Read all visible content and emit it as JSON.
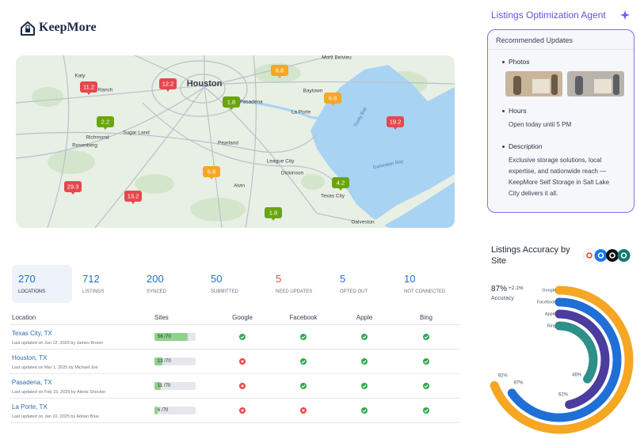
{
  "header": {
    "logo": "KeepMore"
  },
  "map": {
    "places": [
      "Houston",
      "Katy",
      "Ranch",
      "Sugar Land",
      "Richmond",
      "Rosenberg",
      "Pasadena",
      "Baytown",
      "La Porte",
      "Pearland",
      "League City",
      "Dickinson",
      "Alvin",
      "Texas City",
      "Galveston",
      "Mont Belvieu",
      "Trinity Bay",
      "Galveston Bay"
    ],
    "markers": [
      {
        "value": 11.2,
        "color": "#e5484d"
      },
      {
        "value": 12.2,
        "color": "#e5484d"
      },
      {
        "value": 6.8,
        "color": "#f5a623"
      },
      {
        "value": 6.8,
        "color": "#f5a623"
      },
      {
        "value": 1.8,
        "color": "#6aa50f"
      },
      {
        "value": 2.2,
        "color": "#6aa50f"
      },
      {
        "value": 19.2,
        "color": "#e5484d"
      },
      {
        "value": 6.8,
        "color": "#f5a623"
      },
      {
        "value": 29.3,
        "color": "#e5484d"
      },
      {
        "value": 13.2,
        "color": "#e5484d"
      },
      {
        "value": 4.2,
        "color": "#6aa50f"
      },
      {
        "value": 1.8,
        "color": "#6aa50f"
      }
    ]
  },
  "stats": [
    {
      "value": 270,
      "label": "LOCATIONS",
      "color": "#1f6fd6"
    },
    {
      "value": 712,
      "label": "LISTINGS",
      "color": "#1f6fd6"
    },
    {
      "value": 200,
      "label": "SYNCED",
      "color": "#1f6fd6"
    },
    {
      "value": 50,
      "label": "SUBMITTED",
      "color": "#1f6fd6"
    },
    {
      "value": 5,
      "label": "NEED UPDATES",
      "color": "#e5484d"
    },
    {
      "value": 5,
      "label": "OPTED OUT",
      "color": "#1f6fd6"
    },
    {
      "value": 10,
      "label": "NOT CONNECTED",
      "color": "#1f6fd6"
    }
  ],
  "table": {
    "headers": [
      "Location",
      "Sites",
      "Google",
      "Facebook",
      "Apple",
      "Bing"
    ],
    "rows": [
      {
        "name": "Texas City, TX",
        "updated": "Last updated on Jun 12, 2025 by James Brown",
        "sites": 56,
        "sites_total": 70,
        "sites_label": "56 /70",
        "statuses": [
          true,
          true,
          true,
          true
        ]
      },
      {
        "name": "Houston, TX",
        "updated": "Last updated on Mar 1, 2025 by Michael Joe",
        "sites": 13,
        "sites_total": 70,
        "sites_label": "13 /70",
        "statuses": [
          false,
          true,
          true,
          true
        ]
      },
      {
        "name": "Pasadena, TX",
        "updated": "Last updated on Feb 15, 2025 by Alexis Shocker",
        "sites": 11,
        "sites_total": 70,
        "sites_label": "11 /70",
        "statuses": [
          false,
          true,
          true,
          true
        ]
      },
      {
        "name": "La Porte, TX",
        "updated": "Last updated on Jan 10, 2025 by Adrian Blue",
        "sites": 6,
        "sites_total": 70,
        "sites_label": "6 /70",
        "statuses": [
          false,
          false,
          true,
          true
        ]
      }
    ]
  },
  "agent": {
    "title": "Listings Optimization Agent",
    "card_title": "Recommended Updates",
    "items": [
      {
        "label": "Photos"
      },
      {
        "label": "Hours",
        "text": "Open today until 5 PM"
      },
      {
        "label": "Description",
        "text": "Exclusive storage solutions, local expertise, and nationwide reach — KeepMore Self Storage in Salt Lake City delivers it all."
      }
    ]
  },
  "accuracy": {
    "title": "Listings Accuracy by Site",
    "value": 87,
    "value_label": "87%",
    "change": "+2.1%",
    "label": "Accuracy",
    "max": 100,
    "series": [
      {
        "name": "Google",
        "value": 92,
        "value_label": "92%",
        "color": "#f5a623"
      },
      {
        "name": "Facebook",
        "value": 87,
        "value_label": "87%",
        "color": "#1f6fd6"
      },
      {
        "name": "Apple",
        "value": 62,
        "value_label": "62%",
        "color": "#4b3c9e"
      },
      {
        "name": "Bing",
        "value": 46,
        "value_label": "46%",
        "color": "#2f8f8a"
      }
    ]
  }
}
